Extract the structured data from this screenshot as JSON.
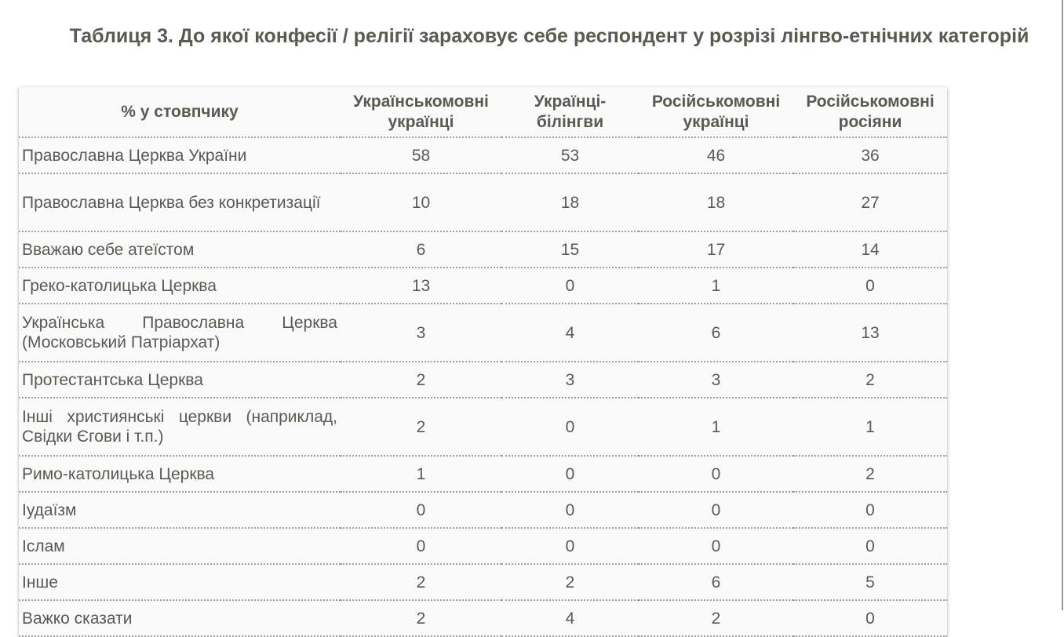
{
  "title": "Таблиця 3. До якої конфесії / релігії зараховує себе респондент у розрізі лінгво-етнічних категорій",
  "table": {
    "headers": [
      "% у стовпчику",
      "Українськомовні українці",
      "Українці-білінгви",
      "Російськомовні українці",
      "Російськомовні росіяни"
    ],
    "rows": [
      {
        "label": "Православна Церква України",
        "values": [
          "58",
          "53",
          "46",
          "36"
        ]
      },
      {
        "label": "Православна Церква без конкретизації",
        "values": [
          "10",
          "18",
          "18",
          "27"
        ]
      },
      {
        "label": "Вважаю себе атеїстом",
        "values": [
          "6",
          "15",
          "17",
          "14"
        ]
      },
      {
        "label": "Греко-католицька Церква",
        "values": [
          "13",
          "0",
          "1",
          "0"
        ]
      },
      {
        "label": "Українська Православна Церква (Московський Патріархат)",
        "values": [
          "3",
          "4",
          "6",
          "13"
        ]
      },
      {
        "label": "Протестантська Церква",
        "values": [
          "2",
          "3",
          "3",
          "2"
        ]
      },
      {
        "label": "Інші християнські церкви (наприклад, Свідки Єгови і т.п.)",
        "values": [
          "2",
          "0",
          "1",
          "1"
        ]
      },
      {
        "label": "Римо-католицька Церква",
        "values": [
          "1",
          "0",
          "0",
          "2"
        ]
      },
      {
        "label": "Іудаїзм",
        "values": [
          "0",
          "0",
          "0",
          "0"
        ]
      },
      {
        "label": "Іслам",
        "values": [
          "0",
          "0",
          "0",
          "0"
        ]
      },
      {
        "label": "Інше",
        "values": [
          "2",
          "2",
          "6",
          "5"
        ]
      },
      {
        "label": "Важко сказати",
        "values": [
          "2",
          "4",
          "2",
          "0"
        ]
      }
    ]
  }
}
